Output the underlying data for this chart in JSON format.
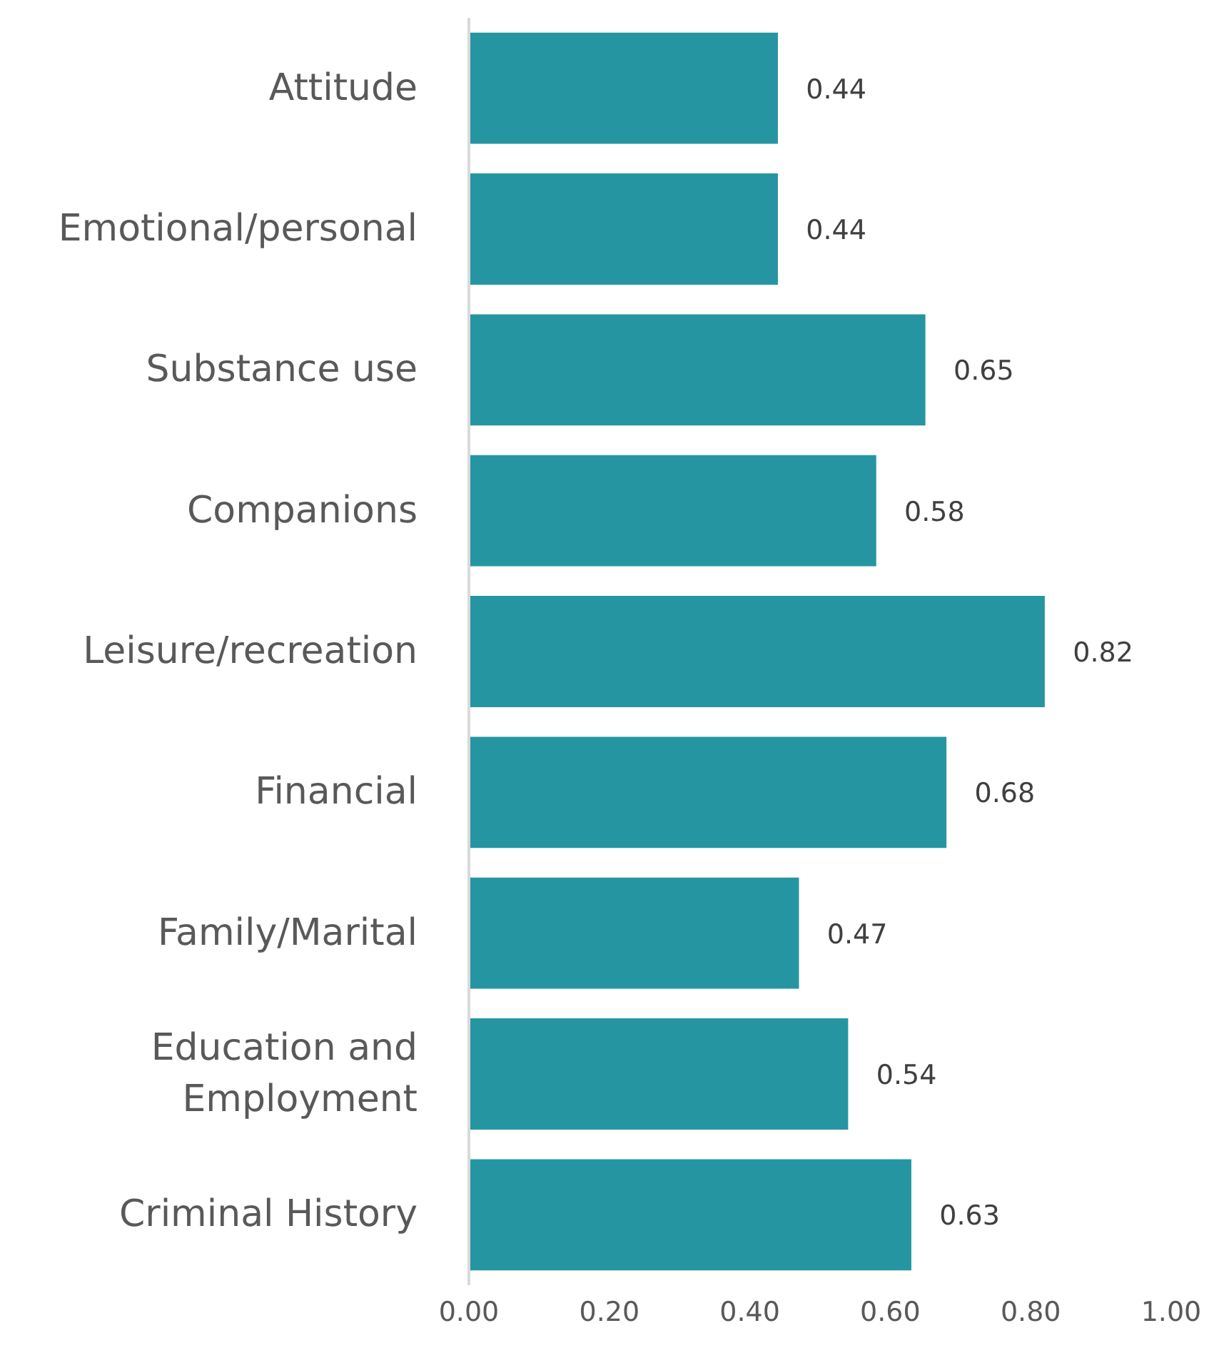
{
  "chart_data": {
    "type": "bar",
    "orientation": "horizontal",
    "categories": [
      "Attitude",
      "Emotional/personal",
      "Substance use",
      "Companions",
      "Leisure/recreation",
      "Financial",
      "Family/Marital",
      "Education and Employment",
      "Criminal History"
    ],
    "values": [
      0.44,
      0.44,
      0.65,
      0.58,
      0.82,
      0.68,
      0.47,
      0.54,
      0.63
    ],
    "color": "#2596a1",
    "data_labels": true,
    "grid": false,
    "xlim": [
      0,
      1
    ],
    "xticks": [
      {
        "value": 0,
        "label": "0.00"
      },
      {
        "value": 0.2,
        "label": "0.20"
      },
      {
        "value": 0.4,
        "label": "0.40"
      },
      {
        "value": 0.6,
        "label": "0.60"
      },
      {
        "value": 0.8,
        "label": "0.80"
      },
      {
        "value": 1,
        "label": "1.00"
      }
    ]
  }
}
